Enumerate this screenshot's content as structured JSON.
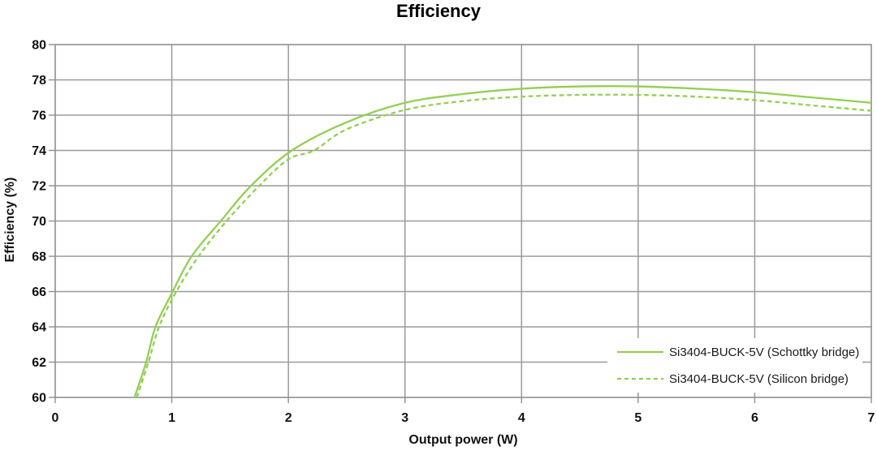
{
  "chart_data": {
    "type": "line",
    "title": "Efficiency",
    "xlabel": "Output power (W)",
    "ylabel": "Efficiency (%)",
    "xlim": [
      0,
      7
    ],
    "ylim": [
      60,
      80
    ],
    "xticks": [
      0,
      1,
      2,
      3,
      4,
      5,
      6,
      7
    ],
    "yticks": [
      60,
      62,
      64,
      66,
      68,
      70,
      72,
      74,
      76,
      78,
      80
    ],
    "grid": true,
    "legend": {
      "position": "inside-bottom-right",
      "items": [
        "Si3404-BUCK-5V (Schottky bridge)",
        "Si3404-BUCK-5V (Silicon bridge)"
      ]
    },
    "colors": {
      "line_green": "#92d050",
      "gridline": "#9a9a9a",
      "frame": "#8f8f8f",
      "text": "#111111"
    },
    "series": [
      {
        "name": "Si3404-BUCK-5V (Schottky bridge)",
        "line_style": "solid",
        "color": "#92d050",
        "points": [
          [
            0.68,
            60
          ],
          [
            0.78,
            62
          ],
          [
            0.86,
            64
          ],
          [
            1.0,
            65.9
          ],
          [
            1.17,
            68
          ],
          [
            1.42,
            70
          ],
          [
            1.68,
            72
          ],
          [
            2.03,
            74
          ],
          [
            2.5,
            75.6
          ],
          [
            3.0,
            76.7
          ],
          [
            3.5,
            77.2
          ],
          [
            4.0,
            77.5
          ],
          [
            4.5,
            77.63
          ],
          [
            5.0,
            77.63
          ],
          [
            5.5,
            77.5
          ],
          [
            6.0,
            77.3
          ],
          [
            6.5,
            77.0
          ],
          [
            7.0,
            76.7
          ]
        ]
      },
      {
        "name": "Si3404-BUCK-5V (Silicon bridge)",
        "line_style": "dashed",
        "color": "#92d050",
        "points": [
          [
            0.7,
            60
          ],
          [
            0.8,
            62
          ],
          [
            0.89,
            64
          ],
          [
            1.03,
            65.9
          ],
          [
            1.23,
            68
          ],
          [
            1.47,
            70
          ],
          [
            1.75,
            72
          ],
          [
            2.0,
            73.5
          ],
          [
            2.22,
            74
          ],
          [
            2.5,
            75.2
          ],
          [
            3.0,
            76.3
          ],
          [
            3.5,
            76.8
          ],
          [
            4.0,
            77.05
          ],
          [
            4.5,
            77.15
          ],
          [
            5.0,
            77.15
          ],
          [
            5.5,
            77.05
          ],
          [
            6.0,
            76.85
          ],
          [
            6.5,
            76.55
          ],
          [
            7.0,
            76.25
          ]
        ]
      }
    ]
  }
}
